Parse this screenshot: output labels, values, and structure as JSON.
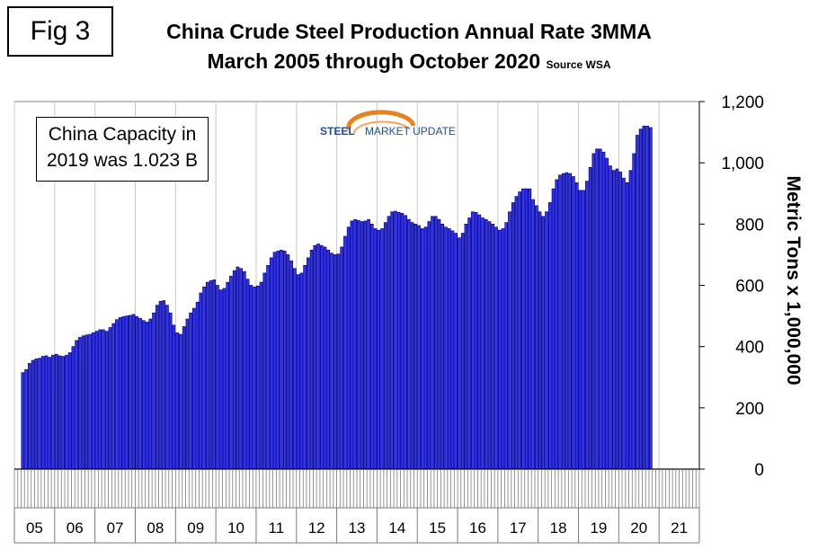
{
  "figure_label": "Fig 3",
  "logo": {
    "word1": "STEEL",
    "word2": "MARKET UPDATE"
  },
  "annotation": {
    "line1": "China Capacity in",
    "line2": "2019 was 1.023 B"
  },
  "colors": {
    "bar_fill": "#3333ee",
    "bar_stroke": "#000080",
    "plot_bg": "#ffffff",
    "grid": "#c8c8c8",
    "logo_blue": "#1f4e9e",
    "logo_orange": "#e8821e"
  },
  "chart_data": {
    "type": "bar",
    "title": "China Crude Steel Production Annual Rate 3MMA",
    "subtitle": "March 2005 through October 2020",
    "source": "Source WSA",
    "ylabel": "Metric Tons x 1,000,000",
    "ylim": [
      0,
      1200
    ],
    "yticks": [
      "0",
      "200",
      "400",
      "600",
      "800",
      "1,000",
      "1,200"
    ],
    "ytick_values": [
      0,
      200,
      400,
      600,
      800,
      1000,
      1200
    ],
    "year_labels": [
      "05",
      "06",
      "07",
      "08",
      "09",
      "10",
      "11",
      "12",
      "13",
      "14",
      "15",
      "16",
      "17",
      "18",
      "19",
      "20",
      "21"
    ],
    "months_per_year": 12,
    "first_month_index": 2,
    "grid": "vertical yearly gridlines",
    "series": [
      {
        "values": [
          315,
          325,
          345,
          355,
          360,
          362,
          368,
          370,
          365,
          372,
          375,
          370,
          368,
          372,
          380,
          400,
          420,
          430,
          435,
          438,
          440,
          445,
          450,
          455,
          455,
          450,
          462,
          475,
          488,
          495,
          498,
          500,
          502,
          505,
          498,
          492,
          485,
          480,
          490,
          510,
          535,
          548,
          550,
          535,
          510,
          470,
          445,
          440,
          465,
          490,
          510,
          525,
          545,
          575,
          595,
          610,
          615,
          618,
          600,
          585,
          590,
          610,
          630,
          648,
          660,
          655,
          645,
          620,
          600,
          595,
          598,
          610,
          640,
          665,
          690,
          708,
          712,
          715,
          712,
          700,
          680,
          655,
          635,
          640,
          665,
          690,
          715,
          730,
          735,
          730,
          725,
          715,
          705,
          700,
          702,
          725,
          760,
          790,
          810,
          815,
          812,
          808,
          810,
          815,
          800,
          785,
          780,
          785,
          805,
          825,
          840,
          842,
          838,
          835,
          828,
          815,
          805,
          800,
          795,
          785,
          790,
          808,
          825,
          825,
          815,
          800,
          790,
          785,
          778,
          770,
          755,
          770,
          800,
          820,
          840,
          838,
          830,
          820,
          815,
          808,
          800,
          790,
          780,
          785,
          805,
          840,
          870,
          890,
          905,
          915,
          915,
          915,
          880,
          860,
          840,
          825,
          840,
          870,
          915,
          945,
          960,
          965,
          968,
          965,
          955,
          935,
          910,
          910,
          940,
          985,
          1030,
          1045,
          1045,
          1035,
          1015,
          990,
          975,
          980,
          970,
          950,
          935,
          975,
          1030,
          1090,
          1110,
          1120,
          1120,
          1115
        ]
      }
    ]
  }
}
